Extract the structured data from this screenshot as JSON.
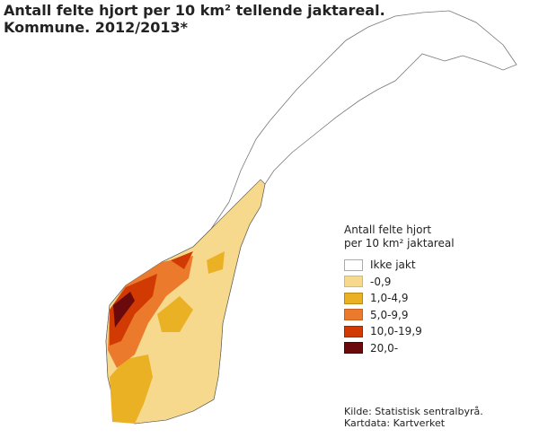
{
  "title": [
    "Antall felte hjort per 10 km² tellende jaktareal.",
    "Kommune. 2012/2013*"
  ],
  "legend": {
    "title": [
      "Antall felte hjort",
      "per 10 km² jaktareal"
    ],
    "items": [
      {
        "label": "Ikke jakt",
        "color": "#ffffff"
      },
      {
        "label": "-0,9",
        "color": "#f7d98d"
      },
      {
        "label": "1,0-4,9",
        "color": "#ebb124"
      },
      {
        "label": "5,0-9,9",
        "color": "#ec7a2c"
      },
      {
        "label": "10,0-19,9",
        "color": "#d13a02"
      },
      {
        "label": "20,0-",
        "color": "#6b0a0c"
      }
    ]
  },
  "source": [
    "Kilde: Statistisk sentralbyrå.",
    "Kartdata: Kartverket"
  ]
}
